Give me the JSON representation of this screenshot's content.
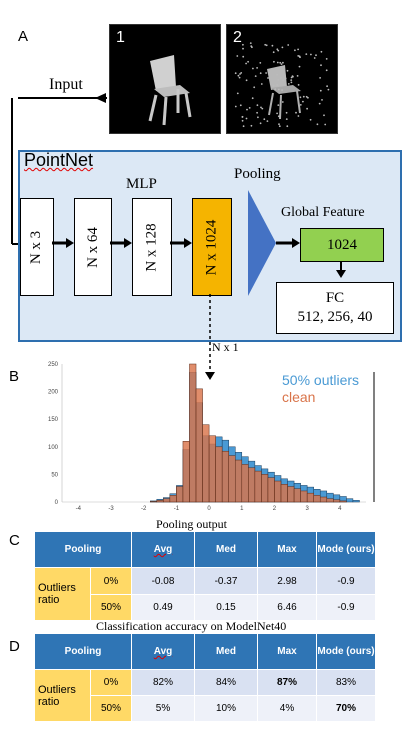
{
  "panel_labels": {
    "a": "A",
    "b": "B",
    "c": "C",
    "d": "D"
  },
  "inputs": {
    "image1_label": "1",
    "image2_label": "2",
    "input_label": "Input"
  },
  "pointnet": {
    "title": "PointNet",
    "mlp_label": "MLP",
    "pooling_label": "Pooling",
    "global_feature_label": "Global Feature",
    "layers": [
      "N x 3",
      "N x 64",
      "N x 128",
      "N x 1024"
    ],
    "global_value": "1024",
    "fc_title": "FC",
    "fc_sizes": "512, 256, 40",
    "nx1_label": "N x 1"
  },
  "chart_data": {
    "type": "bar",
    "legend": [
      "50% outliers",
      "clean"
    ],
    "legend_placement": "top-right",
    "colors": {
      "outliers": "#4a9ad4",
      "clean": "#d9744a"
    },
    "x_ticks": [
      "-4",
      "-3",
      "-2",
      "-1",
      "0",
      "1",
      "2",
      "3",
      "4"
    ],
    "y_ticks": [
      "0",
      "50",
      "100",
      "150",
      "200",
      "250"
    ],
    "xlim": [
      -4.5,
      4.8
    ],
    "ylim": [
      0,
      250
    ],
    "bin_width": 0.2,
    "series": [
      {
        "name": "50% outliers",
        "x": [
          -1.8,
          -1.6,
          -1.4,
          -1.2,
          -1.0,
          -0.8,
          -0.6,
          -0.4,
          -0.2,
          0.0,
          0.2,
          0.4,
          0.6,
          0.8,
          1.0,
          1.2,
          1.4,
          1.6,
          1.8,
          2.0,
          2.2,
          2.4,
          2.6,
          2.8,
          3.0,
          3.2,
          3.4,
          3.6,
          3.8,
          4.0,
          4.2,
          4.4
        ],
        "values": [
          2,
          5,
          8,
          15,
          30,
          95,
          235,
          180,
          120,
          105,
          118,
          112,
          100,
          90,
          82,
          74,
          66,
          60,
          54,
          48,
          42,
          38,
          34,
          30,
          27,
          23,
          20,
          16,
          13,
          10,
          6,
          3
        ]
      },
      {
        "name": "clean",
        "x": [
          -1.8,
          -1.6,
          -1.4,
          -1.2,
          -1.0,
          -0.8,
          -0.6,
          -0.4,
          -0.2,
          0.0,
          0.2,
          0.4,
          0.6,
          0.8,
          1.0,
          1.2,
          1.4,
          1.6,
          1.8,
          2.0,
          2.2,
          2.4,
          2.6,
          2.8,
          3.0,
          3.2,
          3.4,
          3.6,
          3.8,
          4.0
        ],
        "values": [
          1,
          3,
          6,
          12,
          28,
          110,
          250,
          205,
          140,
          120,
          100,
          92,
          84,
          76,
          68,
          62,
          56,
          50,
          44,
          38,
          32,
          28,
          24,
          20,
          16,
          12,
          9,
          6,
          4,
          2
        ]
      }
    ]
  },
  "table_c": {
    "caption": "Pooling output",
    "headers": [
      "Pooling",
      "Avg",
      "Med",
      "Max",
      "Mode (ours)"
    ],
    "row_group": "Outliers ratio",
    "rows": [
      {
        "ratio": "0%",
        "cells": [
          "-0.08",
          "-0.37",
          "2.98",
          "-0.9"
        ]
      },
      {
        "ratio": "50%",
        "cells": [
          "0.49",
          "0.15",
          "6.46",
          "-0.9"
        ]
      }
    ]
  },
  "table_d": {
    "caption": "Classification accuracy on ModelNet40",
    "headers": [
      "Pooling",
      "Avg",
      "Med",
      "Max",
      "Mode (ours)"
    ],
    "row_group": "Outliers ratio",
    "rows": [
      {
        "ratio": "0%",
        "cells": [
          "82%",
          "84%",
          "87%",
          "83%"
        ]
      },
      {
        "ratio": "50%",
        "cells": [
          "5%",
          "10%",
          "4%",
          "70%"
        ]
      }
    ]
  }
}
